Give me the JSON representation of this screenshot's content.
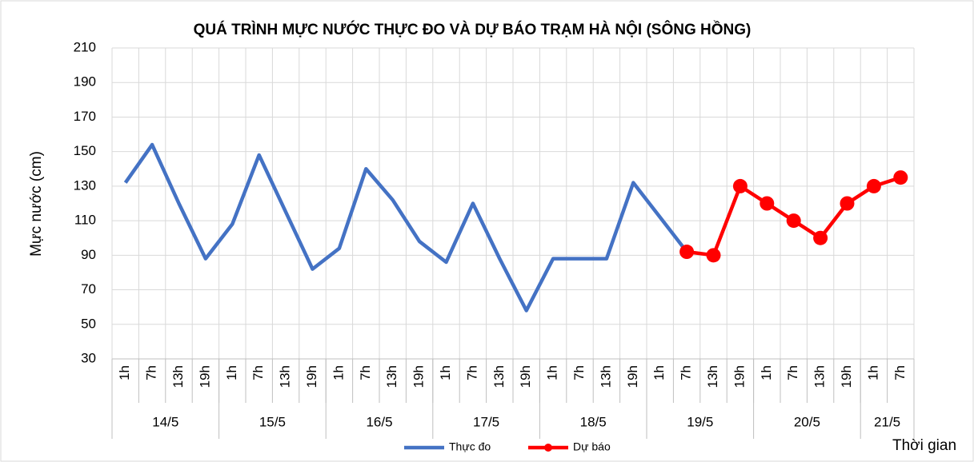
{
  "chart_data": {
    "type": "line",
    "title": "QUÁ TRÌNH MỰC NƯỚC THỰC ĐO VÀ DỰ BÁO TRẠM HÀ NỘI (SÔNG HỒNG)",
    "y_label": "Mực nước (cm)",
    "x_label": "Thời gian",
    "categories": [
      "1h",
      "7h",
      "13h",
      "19h",
      "1h",
      "7h",
      "13h",
      "19h",
      "1h",
      "7h",
      "13h",
      "19h",
      "1h",
      "7h",
      "13h",
      "19h",
      "1h",
      "7h",
      "13h",
      "19h",
      "1h",
      "7h",
      "13h",
      "19h",
      "1h",
      "7h",
      "13h",
      "19h",
      "1h",
      "7h"
    ],
    "days": [
      "14/5",
      null,
      null,
      null,
      "15/5",
      null,
      null,
      null,
      "16/5",
      null,
      null,
      null,
      "17/5",
      null,
      null,
      null,
      "18/5",
      null,
      null,
      null,
      "19/5",
      null,
      null,
      null,
      "20/5",
      null,
      null,
      null,
      "21/5",
      null
    ],
    "series": [
      {
        "name": "Thực đo",
        "color": "#4472c4",
        "marker": false,
        "values": [
          132,
          154,
          120,
          88,
          108,
          148,
          115,
          82,
          94,
          140,
          122,
          98,
          86,
          120,
          88,
          58,
          88,
          88,
          88,
          132,
          112,
          92,
          null,
          null,
          null,
          null,
          null,
          null,
          null,
          null
        ]
      },
      {
        "name": "Dự báo",
        "color": "#ff0000",
        "marker": true,
        "values": [
          null,
          null,
          null,
          null,
          null,
          null,
          null,
          null,
          null,
          null,
          null,
          null,
          null,
          null,
          null,
          null,
          null,
          null,
          null,
          null,
          null,
          92,
          90,
          130,
          120,
          110,
          100,
          120,
          130,
          135
        ]
      }
    ],
    "ylim": [
      30,
      210
    ],
    "yticks": [
      30,
      50,
      70,
      90,
      110,
      130,
      150,
      170,
      190,
      210
    ],
    "grid": true,
    "legend": "bottom"
  }
}
